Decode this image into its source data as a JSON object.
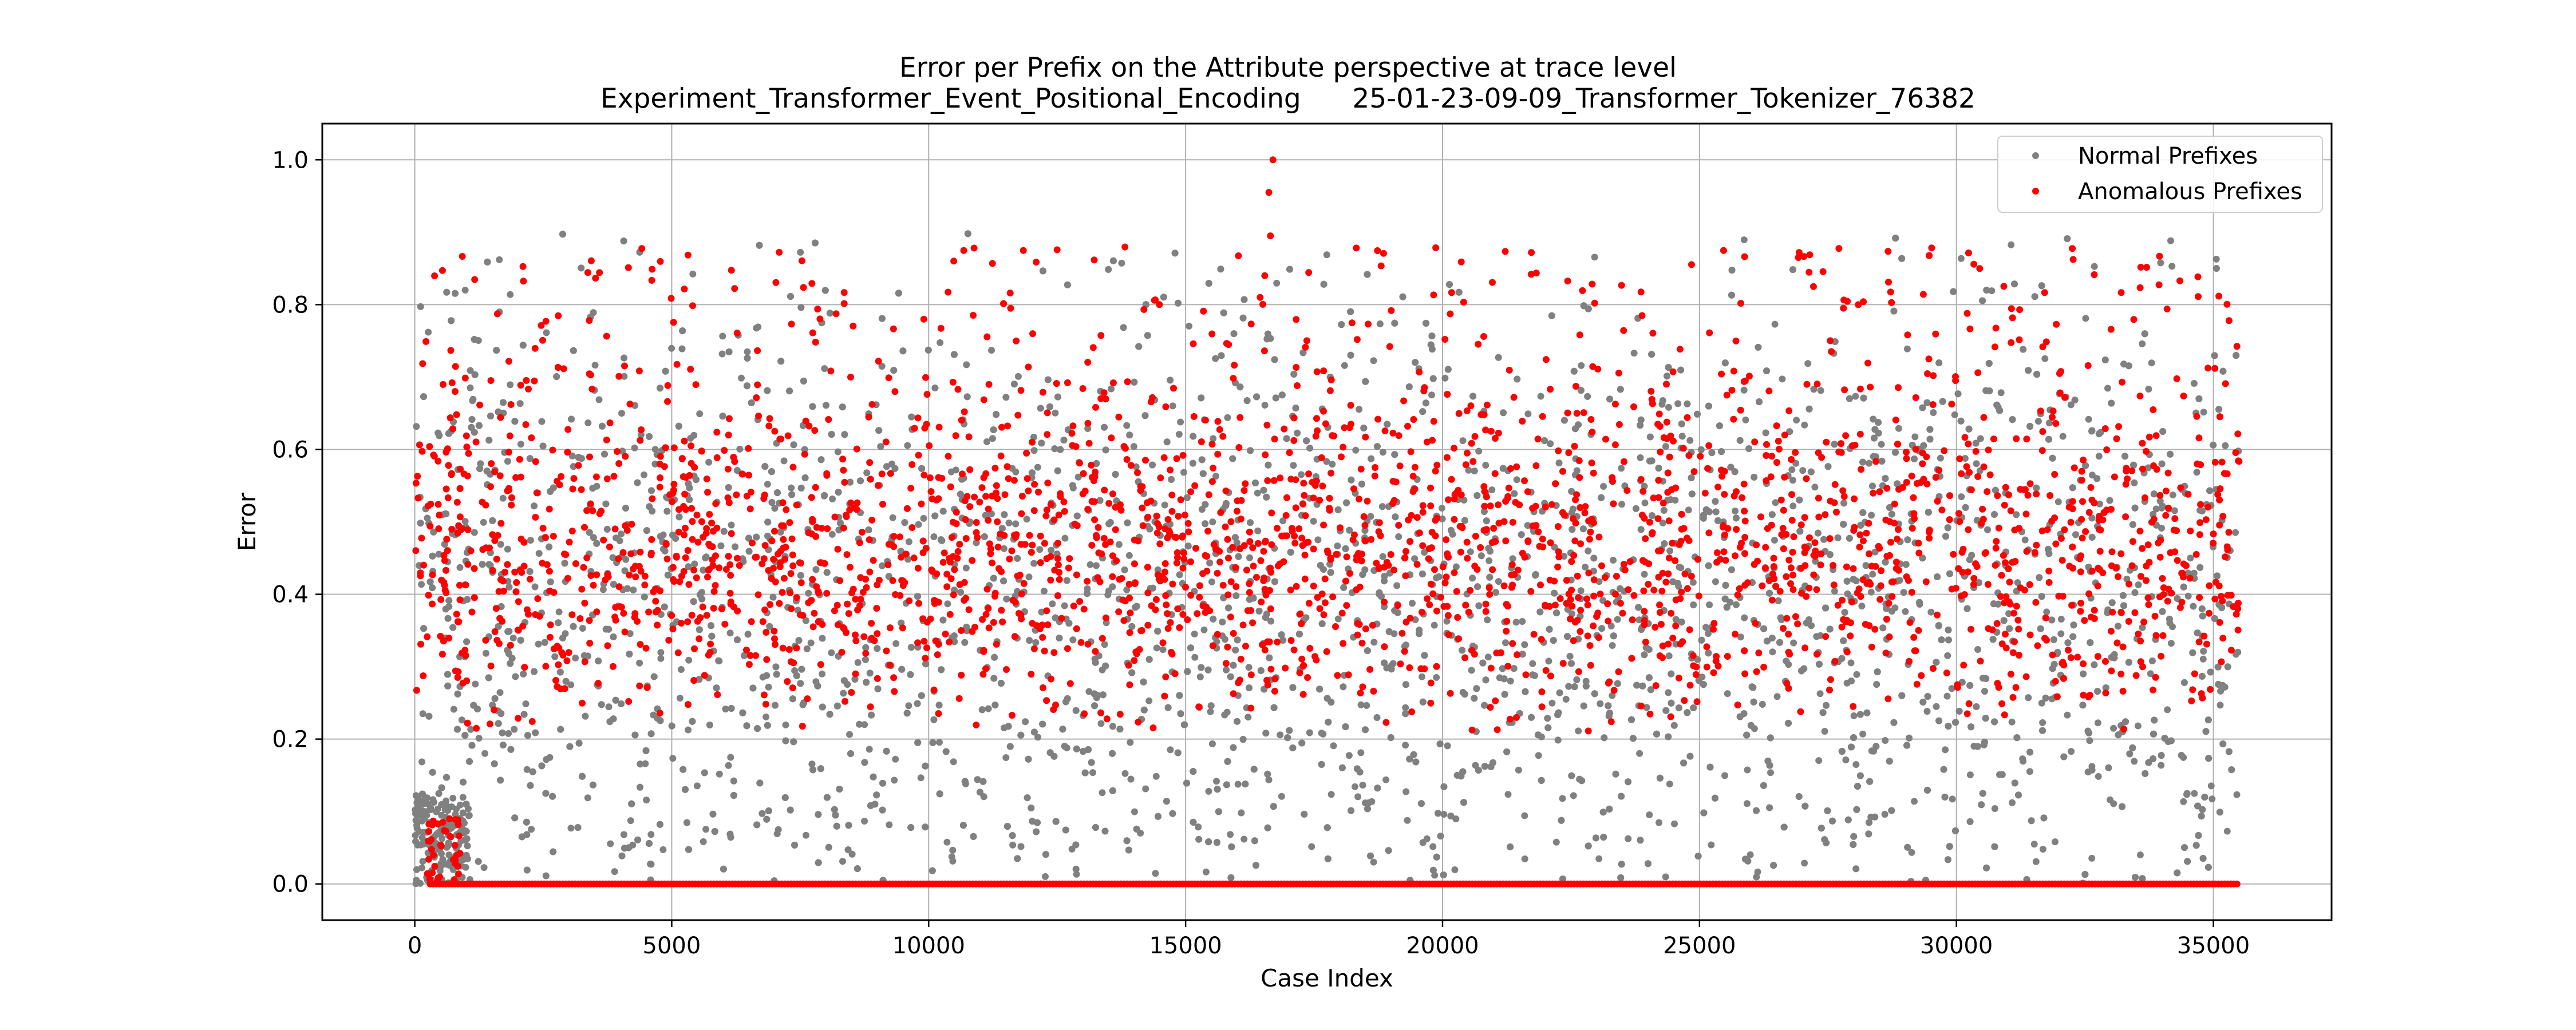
{
  "chart_data": {
    "type": "scatter",
    "title": "Error per Prefix on the Attribute perspective at trace level",
    "subtitle": "Experiment_Transformer_Event_Positional_Encoding      25-01-23-09-09_Transformer_Tokenizer_76382",
    "xlabel": "Case Index",
    "ylabel": "Error",
    "xlim": [
      -1800,
      37300
    ],
    "ylim": [
      -0.05,
      1.05
    ],
    "xticks": [
      0,
      5000,
      10000,
      15000,
      20000,
      25000,
      30000,
      35000
    ],
    "yticks": [
      0.0,
      0.2,
      0.4,
      0.6,
      0.8,
      1.0
    ],
    "grid": true,
    "legend_position": "top-right",
    "n_cases": 35500,
    "series": [
      {
        "name": "Normal Prefixes",
        "color": "#808080",
        "marker": "circle"
      },
      {
        "name": "Anomalous Prefixes",
        "color": "#ff0000",
        "marker": "circle"
      }
    ],
    "distribution_note": "Dense point cloud across all case indices with errors mostly between 0.0 and 0.9; anomalous prefixes concentrated around 0.2-0.7 plus a continuous band at 0.0; maximum error 1.0 near case 16700."
  }
}
